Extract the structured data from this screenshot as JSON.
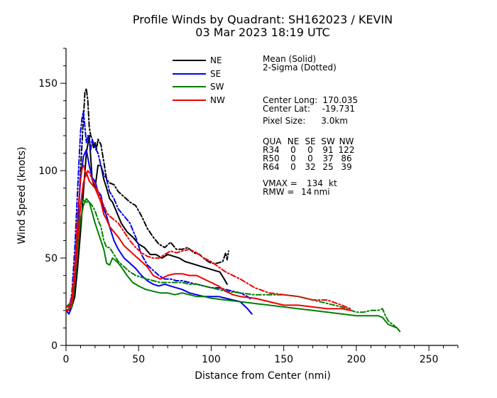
{
  "chart_data": {
    "type": "line",
    "title": "Profile Winds by Quadrant: SH162023 / KEVIN",
    "subtitle": "03 Mar 2023 18:19 UTC",
    "xlabel": "Distance from Center (nmi)",
    "ylabel": "Wind Speed (knots)",
    "xlim": [
      0,
      270
    ],
    "ylim": [
      0,
      170
    ],
    "xticks": [
      0,
      50,
      100,
      150,
      200,
      250
    ],
    "yticks": [
      0,
      50,
      100,
      150
    ],
    "grid": false,
    "legend_position": "top-left",
    "series": [
      {
        "name": "NE",
        "color": "#000000",
        "style": "solid",
        "x": [
          0,
          4,
          6,
          8,
          10,
          12,
          14,
          16,
          18,
          20,
          22,
          24,
          26,
          28,
          30,
          32,
          35,
          38,
          42,
          46,
          50,
          54,
          58,
          62,
          66,
          70,
          74,
          78,
          82,
          86,
          90,
          94,
          98,
          102,
          106,
          109,
          111
        ],
        "y": [
          20,
          22,
          28,
          45,
          65,
          88,
          110,
          120,
          95,
          90,
          103,
          103,
          95,
          90,
          84,
          82,
          76,
          70,
          65,
          62,
          58,
          56,
          52,
          52,
          50,
          52,
          51,
          50,
          48,
          47,
          46,
          45,
          44,
          43,
          42,
          38,
          35
        ]
      },
      {
        "name": "NE",
        "color": "#000000",
        "style": "dashdot",
        "x": [
          0,
          4,
          6,
          8,
          10,
          12,
          13,
          14,
          15,
          16,
          17,
          18,
          19,
          20,
          21,
          22,
          24,
          26,
          28,
          30,
          33,
          36,
          40,
          44,
          48,
          52,
          56,
          60,
          64,
          68,
          72,
          76,
          80,
          84,
          88,
          92,
          96,
          100,
          104,
          108,
          110,
          111,
          112
        ],
        "y": [
          22,
          24,
          40,
          70,
          100,
          130,
          145,
          147,
          140,
          125,
          120,
          118,
          113,
          116,
          112,
          118,
          115,
          105,
          95,
          93,
          92,
          88,
          85,
          82,
          80,
          74,
          67,
          62,
          58,
          56,
          59,
          55,
          55,
          56,
          53,
          52,
          49,
          47,
          47,
          48,
          53,
          49,
          54
        ]
      },
      {
        "name": "SE",
        "color": "#0000ee",
        "style": "solid",
        "x": [
          0,
          2,
          4,
          6,
          8,
          10,
          12,
          14,
          16,
          18,
          20,
          22,
          24,
          26,
          28,
          30,
          33,
          36,
          40,
          44,
          48,
          52,
          56,
          60,
          64,
          68,
          72,
          76,
          80,
          85,
          90,
          95,
          100,
          105,
          110,
          115,
          120,
          125,
          128
        ],
        "y": [
          20,
          18,
          22,
          40,
          70,
          95,
          108,
          112,
          103,
          96,
          94,
          88,
          86,
          78,
          74,
          68,
          60,
          55,
          50,
          47,
          44,
          40,
          37,
          35,
          34,
          35,
          34,
          33,
          32,
          30,
          29,
          28,
          28,
          28,
          27,
          26,
          25,
          21,
          18
        ]
      },
      {
        "name": "SE",
        "color": "#0000ee",
        "style": "dashdot",
        "x": [
          0,
          2,
          4,
          6,
          8,
          10,
          11,
          12,
          13,
          14,
          15,
          16,
          17,
          18,
          20,
          22,
          24,
          26,
          28,
          30,
          33,
          36,
          40,
          44,
          48,
          52,
          56,
          60,
          64,
          68,
          72,
          76,
          80,
          85,
          90,
          95,
          100,
          105,
          110,
          115,
          120,
          125,
          128
        ],
        "y": [
          20,
          20,
          30,
          55,
          90,
          122,
          130,
          134,
          125,
          116,
          120,
          118,
          112,
          118,
          113,
          110,
          103,
          98,
          95,
          88,
          84,
          78,
          74,
          70,
          62,
          52,
          46,
          43,
          40,
          38,
          38,
          37,
          37,
          36,
          35,
          34,
          33,
          33,
          32,
          31,
          30,
          28,
          26
        ]
      },
      {
        "name": "SW",
        "color": "#008000",
        "style": "solid",
        "x": [
          0,
          4,
          6,
          8,
          10,
          12,
          14,
          16,
          18,
          20,
          22,
          24,
          26,
          28,
          30,
          32,
          35,
          38,
          42,
          46,
          50,
          55,
          60,
          65,
          70,
          75,
          80,
          85,
          90,
          95,
          100,
          110,
          120,
          130,
          140,
          150,
          160,
          170,
          180,
          190,
          200,
          205,
          210,
          215,
          218,
          220,
          222,
          225,
          228,
          230
        ],
        "y": [
          20,
          22,
          35,
          55,
          72,
          80,
          84,
          82,
          76,
          70,
          65,
          60,
          55,
          47,
          46,
          50,
          48,
          45,
          40,
          36,
          34,
          32,
          31,
          30,
          30,
          29,
          30,
          29,
          28,
          28,
          27,
          26,
          25,
          24,
          23,
          22,
          21,
          20,
          19,
          18,
          17,
          17,
          17,
          17,
          16,
          14,
          12,
          11,
          10,
          8
        ]
      },
      {
        "name": "SW",
        "color": "#008000",
        "style": "dashdot",
        "x": [
          0,
          4,
          6,
          8,
          10,
          12,
          14,
          16,
          18,
          20,
          22,
          24,
          26,
          28,
          30,
          33,
          36,
          40,
          44,
          48,
          52,
          56,
          60,
          65,
          70,
          75,
          80,
          85,
          90,
          95,
          100,
          110,
          120,
          130,
          140,
          150,
          160,
          170,
          180,
          190,
          200,
          205,
          210,
          215,
          218,
          220,
          222,
          225,
          228,
          230
        ],
        "y": [
          22,
          25,
          40,
          65,
          80,
          83,
          82,
          82,
          80,
          77,
          72,
          68,
          60,
          56,
          56,
          52,
          48,
          45,
          42,
          40,
          39,
          38,
          37,
          36,
          36,
          36,
          36,
          35,
          35,
          34,
          33,
          31,
          30,
          29,
          29,
          29,
          28,
          26,
          24,
          22,
          19,
          19,
          20,
          20,
          21,
          17,
          14,
          12,
          10,
          8
        ]
      },
      {
        "name": "NW",
        "color": "#ee0000",
        "style": "solid",
        "x": [
          0,
          2,
          4,
          6,
          8,
          10,
          12,
          14,
          16,
          18,
          20,
          22,
          24,
          26,
          28,
          30,
          33,
          36,
          40,
          44,
          48,
          52,
          56,
          60,
          65,
          70,
          75,
          80,
          85,
          90,
          95,
          100,
          105,
          110,
          115,
          120,
          130,
          140,
          150,
          160,
          170,
          180,
          190,
          196
        ],
        "y": [
          20,
          20,
          24,
          38,
          60,
          80,
          93,
          99,
          94,
          92,
          90,
          86,
          82,
          75,
          72,
          68,
          65,
          62,
          57,
          54,
          51,
          48,
          45,
          40,
          38,
          40,
          41,
          41,
          40,
          40,
          38,
          36,
          34,
          31,
          29,
          28,
          27,
          25,
          23,
          23,
          22,
          21,
          21,
          20
        ]
      },
      {
        "name": "NW",
        "color": "#ee0000",
        "style": "dashdot",
        "x": [
          0,
          2,
          4,
          6,
          8,
          10,
          11,
          12,
          13,
          14,
          15,
          16,
          17,
          18,
          20,
          22,
          24,
          26,
          28,
          30,
          33,
          36,
          40,
          44,
          48,
          52,
          56,
          60,
          64,
          68,
          72,
          76,
          80,
          85,
          90,
          95,
          100,
          105,
          110,
          120,
          130,
          140,
          150,
          160,
          170,
          180,
          190,
          196
        ],
        "y": [
          22,
          22,
          28,
          45,
          75,
          95,
          101,
          103,
          100,
          97,
          100,
          99,
          97,
          95,
          92,
          88,
          84,
          80,
          76,
          74,
          72,
          70,
          65,
          60,
          56,
          53,
          51,
          50,
          50,
          52,
          54,
          53,
          54,
          55,
          53,
          50,
          48,
          45,
          42,
          38,
          33,
          30,
          29,
          28,
          26,
          26,
          23,
          21
        ]
      }
    ],
    "legend": [
      {
        "label": "NE",
        "color": "#000000"
      },
      {
        "label": "SE",
        "color": "#0000ee"
      },
      {
        "label": "SW",
        "color": "#008000"
      },
      {
        "label": "NW",
        "color": "#ee0000"
      }
    ],
    "info": {
      "mean_label": "Mean (Solid)",
      "sigma_label": "2-Sigma (Dotted)",
      "center_long_label": "Center Long:",
      "center_long_value": "170.035",
      "center_lat_label": "Center Lat:",
      "center_lat_value": "-19.731",
      "pixel_size_label": "Pixel Size:",
      "pixel_size_value": "3.0km",
      "radii_header": [
        "QUA",
        "NE",
        "SE",
        "SW",
        "NW"
      ],
      "radii_rows": [
        [
          "R34",
          "0",
          "0",
          "91",
          "122"
        ],
        [
          "R50",
          "0",
          "0",
          "37",
          "86"
        ],
        [
          "R64",
          "0",
          "32",
          "25",
          "39"
        ]
      ],
      "vmax_label": "VMAX =",
      "vmax_value": "134",
      "vmax_unit": "kt",
      "rmw_label": "RMW =",
      "rmw_value": "14",
      "rmw_unit": "nmi"
    }
  }
}
